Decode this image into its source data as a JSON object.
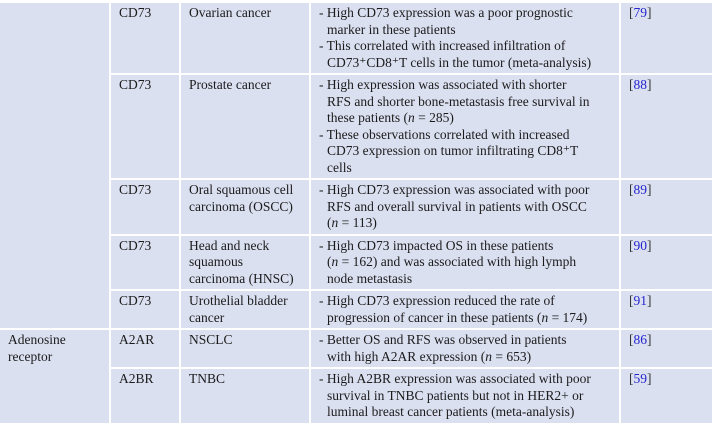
{
  "colors": {
    "cell_background": "#dbe0f1",
    "cell_border": "#ffffff",
    "body_text": "#1b1b1b",
    "citation_number": "#2424cd"
  },
  "table": {
    "rows": [
      {
        "category_lines": [],
        "category_rowspan": 5,
        "marker": "CD73",
        "cancer_lines": [
          "Ovarian cancer"
        ],
        "finding_lines": [
          {
            "t": "- High CD73 expression was a poor prognostic",
            "cont": false
          },
          {
            "t": "marker in these patients",
            "cont": true
          },
          {
            "t": "- This correlated with increased infiltration of",
            "cont": false
          },
          {
            "t": "CD73⁺CD8⁺T cells in the tumor (meta-analysis)",
            "cont": true
          }
        ],
        "reference": "79"
      },
      {
        "marker": "CD73",
        "cancer_lines": [
          "Prostate cancer"
        ],
        "finding_lines": [
          {
            "t": "- High expression was associated with shorter",
            "cont": false
          },
          {
            "t": "RFS and shorter bone-metastasis free survival in",
            "cont": true
          },
          {
            "t": "these patients (*n* = 285)",
            "cont": true
          },
          {
            "t": "- These observations correlated with increased",
            "cont": false
          },
          {
            "t": "CD73 expression on tumor infiltrating CD8⁺T",
            "cont": true
          },
          {
            "t": "cells",
            "cont": true
          }
        ],
        "reference": "88"
      },
      {
        "marker": "CD73",
        "cancer_lines": [
          "Oral squamous cell",
          "carcinoma (OSCC)"
        ],
        "finding_lines": [
          {
            "t": "- High CD73 expression was associated with poor",
            "cont": false
          },
          {
            "t": "RFS and overall survival in patients with OSCC",
            "cont": true
          },
          {
            "t": "(*n* = 113)",
            "cont": true
          }
        ],
        "reference": "89"
      },
      {
        "marker": "CD73",
        "cancer_lines": [
          "Head and neck",
          "squamous",
          "carcinoma (HNSC)"
        ],
        "finding_lines": [
          {
            "t": "- High CD73 impacted OS in these patients",
            "cont": false
          },
          {
            "t": "(*n* = 162) and was associated with high lymph",
            "cont": true
          },
          {
            "t": "node metastasis",
            "cont": true
          }
        ],
        "reference": "90"
      },
      {
        "marker": "CD73",
        "cancer_lines": [
          "Urothelial bladder",
          "cancer"
        ],
        "finding_lines": [
          {
            "t": "- High CD73 expression reduced the rate of",
            "cont": false
          },
          {
            "t": "progression of cancer in these patients (*n* = 174)",
            "cont": true
          }
        ],
        "reference": "91"
      },
      {
        "category_lines": [
          "Adenosine",
          "receptor"
        ],
        "category_rowspan": 2,
        "marker": "A2AR",
        "cancer_lines": [
          "NSCLC"
        ],
        "finding_lines": [
          {
            "t": "- Better OS and RFS was observed in patients",
            "cont": false
          },
          {
            "t": "with high A2AR expression (*n* = 653)",
            "cont": true
          }
        ],
        "reference": "86"
      },
      {
        "marker": "A2BR",
        "cancer_lines": [
          "TNBC"
        ],
        "finding_lines": [
          {
            "t": "- High A2BR expression was associated with poor",
            "cont": false
          },
          {
            "t": "survival in TNBC patients but not in HER2+ or",
            "cont": true
          },
          {
            "t": "luminal breast cancer patients (meta-analysis)",
            "cont": true
          }
        ],
        "reference": "59"
      }
    ]
  }
}
